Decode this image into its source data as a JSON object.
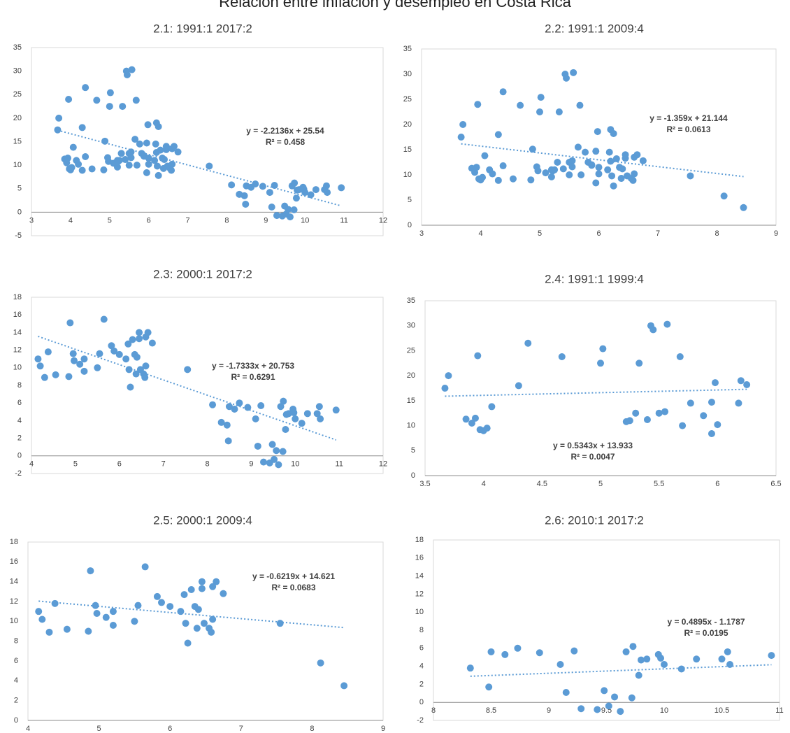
{
  "title": "Relación entre inflación y desempleo en Costa Rica",
  "chart_data": [
    {
      "type": "scatter",
      "title": "2.1:  1991:1 2017:2",
      "color": "#5b9bd5",
      "x": [
        3.67,
        3.7,
        3.85,
        3.9,
        3.93,
        3.95,
        3.97,
        4.0,
        4.03,
        4.07,
        4.3,
        4.38,
        4.67,
        5.0,
        5.02,
        5.22,
        5.25,
        5.3,
        5.33,
        5.4,
        5.43,
        5.45,
        5.5,
        5.55,
        5.57,
        5.68,
        5.7,
        5.77,
        5.88,
        5.95,
        5.95,
        5.98,
        6.0,
        6.18,
        6.2,
        6.25,
        4.15,
        4.2,
        4.3,
        4.38,
        4.55,
        4.85,
        4.88,
        4.95,
        4.97,
        5.1,
        5.2,
        5.2,
        5.5,
        5.55,
        5.65,
        5.82,
        5.88,
        6.0,
        6.15,
        6.2,
        6.22,
        6.25,
        6.3,
        6.35,
        6.38,
        6.4,
        6.45,
        6.45,
        6.48,
        6.55,
        6.58,
        6.6,
        6.6,
        6.65,
        6.75,
        7.55,
        8.12,
        8.45,
        8.32,
        8.48,
        8.5,
        8.62,
        8.73,
        8.92,
        9.1,
        9.15,
        9.22,
        9.28,
        9.42,
        9.48,
        9.52,
        9.57,
        9.62,
        9.67,
        9.72,
        9.73,
        9.78,
        9.8,
        9.85,
        9.95,
        9.97,
        10.0,
        10.15,
        10.28,
        10.5,
        10.55,
        10.57,
        10.93
      ],
      "values": [
        17.5,
        20,
        11.3,
        10.5,
        11.5,
        24,
        9.2,
        9.0,
        9.5,
        13.8,
        18,
        26.5,
        23.8,
        22.5,
        25.4,
        10.8,
        11,
        12.5,
        22.5,
        11.2,
        30,
        29.2,
        12.5,
        12.8,
        30.3,
        23.8,
        10,
        14.5,
        12,
        8.4,
        14.7,
        18.6,
        10.2,
        14.5,
        19,
        18.2,
        11,
        10.2,
        8.9,
        11.8,
        9.2,
        9,
        15.1,
        11.6,
        10.8,
        10.4,
        11,
        9.6,
        10,
        11.6,
        15.5,
        12.5,
        11.9,
        11.5,
        11,
        12.7,
        9.8,
        7.8,
        13.2,
        11.5,
        9.3,
        11.2,
        13.3,
        14,
        9.8,
        9.3,
        8.9,
        10.2,
        13.5,
        14,
        12.8,
        9.8,
        5.8,
        3.5,
        3.8,
        1.7,
        5.6,
        5.3,
        6,
        5.5,
        4.2,
        1.1,
        5.7,
        -0.7,
        -0.8,
        1.3,
        -0.4,
        0.6,
        -1,
        5.6,
        0.5,
        6.2,
        3,
        4.7,
        4.8,
        5.3,
        4.9,
        4.2,
        3.7,
        4.8,
        4.8,
        5.6,
        4.2,
        5.2
      ],
      "xlim": [
        3,
        12
      ],
      "xticks": [
        3,
        4,
        5,
        6,
        7,
        8,
        9,
        10,
        11,
        12
      ],
      "ylim": [
        -5,
        35
      ],
      "yticks": [
        -5,
        0,
        5,
        10,
        15,
        20,
        25,
        30,
        35
      ],
      "trendline": {
        "slope": -2.2136,
        "intercept": 25.54,
        "equation": "y = -2.2136x + 25.54",
        "r_squared": 0.458,
        "r_squared_label": "R² = 0.458"
      }
    },
    {
      "type": "scatter",
      "title": "2.2:  1991:1 2009:4",
      "color": "#5b9bd5",
      "x": [
        3.67,
        3.7,
        3.85,
        3.9,
        3.93,
        3.95,
        3.97,
        4.0,
        4.03,
        4.07,
        4.3,
        4.38,
        4.67,
        5.0,
        5.02,
        5.22,
        5.25,
        5.3,
        5.33,
        5.4,
        5.43,
        5.45,
        5.5,
        5.55,
        5.57,
        5.68,
        5.7,
        5.77,
        5.88,
        5.95,
        5.95,
        5.98,
        6.0,
        6.18,
        6.2,
        6.25,
        4.15,
        4.2,
        4.3,
        4.38,
        4.55,
        4.85,
        4.88,
        4.95,
        4.97,
        5.1,
        5.2,
        5.2,
        5.5,
        5.55,
        5.65,
        5.82,
        5.88,
        6.0,
        6.15,
        6.2,
        6.22,
        6.25,
        6.3,
        6.35,
        6.38,
        6.4,
        6.45,
        6.45,
        6.48,
        6.55,
        6.58,
        6.6,
        6.6,
        6.65,
        6.75,
        7.55,
        8.12,
        8.45
      ],
      "values": [
        17.5,
        20,
        11.3,
        10.5,
        11.5,
        24,
        9.2,
        9.0,
        9.5,
        13.8,
        18,
        26.5,
        23.8,
        22.5,
        25.4,
        10.8,
        11,
        12.5,
        22.5,
        11.2,
        30,
        29.2,
        12.5,
        12.8,
        30.3,
        23.8,
        10,
        14.5,
        12,
        8.4,
        14.7,
        18.6,
        10.2,
        14.5,
        19,
        18.2,
        11,
        10.2,
        8.9,
        11.8,
        9.2,
        9,
        15.1,
        11.6,
        10.8,
        10.4,
        11,
        9.6,
        10,
        11.6,
        15.5,
        12.5,
        11.9,
        11.5,
        11,
        12.7,
        9.8,
        7.8,
        13.2,
        11.5,
        9.3,
        11.2,
        13.3,
        14,
        9.8,
        9.3,
        8.9,
        10.2,
        13.5,
        14,
        12.8,
        9.8,
        5.8,
        3.5
      ],
      "xlim": [
        3,
        9
      ],
      "xticks": [
        3,
        4,
        5,
        6,
        7,
        8,
        9
      ],
      "ylim": [
        0,
        35
      ],
      "yticks": [
        0,
        5,
        10,
        15,
        20,
        25,
        30,
        35
      ],
      "trendline": {
        "slope": -1.359,
        "intercept": 21.144,
        "equation": "y = -1.359x + 21.144",
        "r_squared": 0.0613,
        "r_squared_label": "R² = 0.0613"
      }
    },
    {
      "type": "scatter",
      "title": "2.3:  2000:1 2017:2",
      "color": "#5b9bd5",
      "x": [
        4.15,
        4.2,
        4.3,
        4.38,
        4.55,
        4.85,
        4.88,
        4.95,
        4.97,
        5.1,
        5.2,
        5.2,
        5.5,
        5.55,
        5.65,
        5.82,
        5.88,
        6.0,
        6.15,
        6.2,
        6.22,
        6.25,
        6.3,
        6.35,
        6.38,
        6.4,
        6.45,
        6.45,
        6.48,
        6.55,
        6.58,
        6.6,
        6.6,
        6.65,
        6.75,
        7.55,
        8.12,
        8.45,
        8.32,
        8.48,
        8.5,
        8.62,
        8.73,
        8.92,
        9.1,
        9.15,
        9.22,
        9.28,
        9.42,
        9.48,
        9.52,
        9.57,
        9.62,
        9.67,
        9.72,
        9.73,
        9.78,
        9.8,
        9.85,
        9.95,
        9.97,
        10.0,
        10.15,
        10.28,
        10.5,
        10.55,
        10.57,
        10.93
      ],
      "values": [
        11,
        10.2,
        8.9,
        11.8,
        9.2,
        9,
        15.1,
        11.6,
        10.8,
        10.4,
        11,
        9.6,
        10,
        11.6,
        15.5,
        12.5,
        11.9,
        11.5,
        11,
        12.7,
        9.8,
        7.8,
        13.2,
        11.5,
        9.3,
        11.2,
        13.3,
        14,
        9.8,
        9.3,
        8.9,
        10.2,
        13.5,
        14,
        12.8,
        9.8,
        5.8,
        3.5,
        3.8,
        1.7,
        5.6,
        5.3,
        6,
        5.5,
        4.2,
        1.1,
        5.7,
        -0.7,
        -0.8,
        1.3,
        -0.4,
        0.6,
        -1,
        5.6,
        0.5,
        6.2,
        3,
        4.7,
        4.8,
        5.3,
        4.9,
        4.2,
        3.7,
        4.8,
        4.8,
        5.6,
        4.2,
        5.2
      ],
      "xlim": [
        4,
        12
      ],
      "xticks": [
        4,
        5,
        6,
        7,
        8,
        9,
        10,
        11,
        12
      ],
      "ylim": [
        -2,
        18
      ],
      "yticks": [
        -2,
        0,
        2,
        4,
        6,
        8,
        10,
        12,
        14,
        16,
        18
      ],
      "trendline": {
        "slope": -1.7333,
        "intercept": 20.753,
        "equation": "y = -1.7333x + 20.753",
        "r_squared": 0.6291,
        "r_squared_label": "R² = 0.6291"
      }
    },
    {
      "type": "scatter",
      "title": "2.4:  1991:1 1999:4",
      "color": "#5b9bd5",
      "x": [
        3.67,
        3.7,
        3.85,
        3.9,
        3.93,
        3.95,
        3.97,
        4.0,
        4.03,
        4.07,
        4.3,
        4.38,
        4.67,
        5.0,
        5.02,
        5.22,
        5.25,
        5.3,
        5.33,
        5.4,
        5.43,
        5.45,
        5.5,
        5.55,
        5.57,
        5.68,
        5.7,
        5.77,
        5.88,
        5.95,
        5.95,
        5.98,
        6.0,
        6.18,
        6.2,
        6.25
      ],
      "values": [
        17.5,
        20,
        11.3,
        10.5,
        11.5,
        24,
        9.2,
        9.0,
        9.5,
        13.8,
        18,
        26.5,
        23.8,
        22.5,
        25.4,
        10.8,
        11,
        12.5,
        22.5,
        11.2,
        30,
        29.2,
        12.5,
        12.8,
        30.3,
        23.8,
        10,
        14.5,
        12,
        8.4,
        14.7,
        18.6,
        10.2,
        14.5,
        19,
        18.2
      ],
      "xlim": [
        3.5,
        6.5
      ],
      "xticks": [
        3.5,
        4,
        4.5,
        5,
        5.5,
        6,
        6.5
      ],
      "ylim": [
        0,
        35
      ],
      "yticks": [
        0,
        5,
        10,
        15,
        20,
        25,
        30,
        35
      ],
      "trendline": {
        "slope": 0.5343,
        "intercept": 13.933,
        "equation": "y = 0.5343x + 13.933",
        "r_squared": 0.0047,
        "r_squared_label": "R² = 0.0047"
      }
    },
    {
      "type": "scatter",
      "title": "2.5:  2000:1 2009:4",
      "color": "#5b9bd5",
      "x": [
        4.15,
        4.2,
        4.3,
        4.38,
        4.55,
        4.85,
        4.88,
        4.95,
        4.97,
        5.1,
        5.2,
        5.2,
        5.5,
        5.55,
        5.65,
        5.82,
        5.88,
        6.0,
        6.15,
        6.2,
        6.22,
        6.25,
        6.3,
        6.35,
        6.38,
        6.4,
        6.45,
        6.45,
        6.48,
        6.55,
        6.58,
        6.6,
        6.6,
        6.65,
        6.75,
        7.55,
        8.12,
        8.45
      ],
      "values": [
        11,
        10.2,
        8.9,
        11.8,
        9.2,
        9,
        15.1,
        11.6,
        10.8,
        10.4,
        11,
        9.6,
        10,
        11.6,
        15.5,
        12.5,
        11.9,
        11.5,
        11,
        12.7,
        9.8,
        7.8,
        13.2,
        11.5,
        9.3,
        11.2,
        13.3,
        14,
        9.8,
        9.3,
        8.9,
        10.2,
        13.5,
        14,
        12.8,
        9.8,
        5.8,
        3.5
      ],
      "xlim": [
        4,
        9
      ],
      "xticks": [
        4,
        5,
        6,
        7,
        8,
        9
      ],
      "ylim": [
        0,
        18
      ],
      "yticks": [
        0,
        2,
        4,
        6,
        8,
        10,
        12,
        14,
        16,
        18
      ],
      "trendline": {
        "slope": -0.6219,
        "intercept": 14.621,
        "equation": "y = -0.6219x + 14.621",
        "r_squared": 0.0683,
        "r_squared_label": "R² = 0.0683"
      }
    },
    {
      "type": "scatter",
      "title": "2.6:  2010:1 2017:2",
      "color": "#5b9bd5",
      "x": [
        8.32,
        8.48,
        8.5,
        8.62,
        8.73,
        8.92,
        9.1,
        9.15,
        9.22,
        9.28,
        9.42,
        9.48,
        9.52,
        9.57,
        9.62,
        9.67,
        9.72,
        9.73,
        9.78,
        9.8,
        9.85,
        9.95,
        9.97,
        10.0,
        10.15,
        10.28,
        10.5,
        10.55,
        10.57,
        10.93
      ],
      "values": [
        3.8,
        1.7,
        5.6,
        5.3,
        6,
        5.5,
        4.2,
        1.1,
        5.7,
        -0.7,
        -0.8,
        1.3,
        -0.4,
        0.6,
        -1,
        5.6,
        0.5,
        6.2,
        3,
        4.7,
        4.8,
        5.3,
        4.9,
        4.2,
        3.7,
        4.8,
        4.8,
        5.6,
        4.2,
        5.2
      ],
      "xlim": [
        8,
        11
      ],
      "xticks": [
        8,
        8.5,
        9,
        9.5,
        10,
        10.5,
        11
      ],
      "ylim": [
        -2,
        18
      ],
      "yticks": [
        -2,
        0,
        2,
        4,
        6,
        8,
        10,
        12,
        14,
        16,
        18
      ],
      "trendline": {
        "slope": 0.4895,
        "intercept": -1.1787,
        "equation": "y = 0.4895x - 1.1787",
        "r_squared": 0.0195,
        "r_squared_label": "R² = 0.0195"
      }
    }
  ]
}
